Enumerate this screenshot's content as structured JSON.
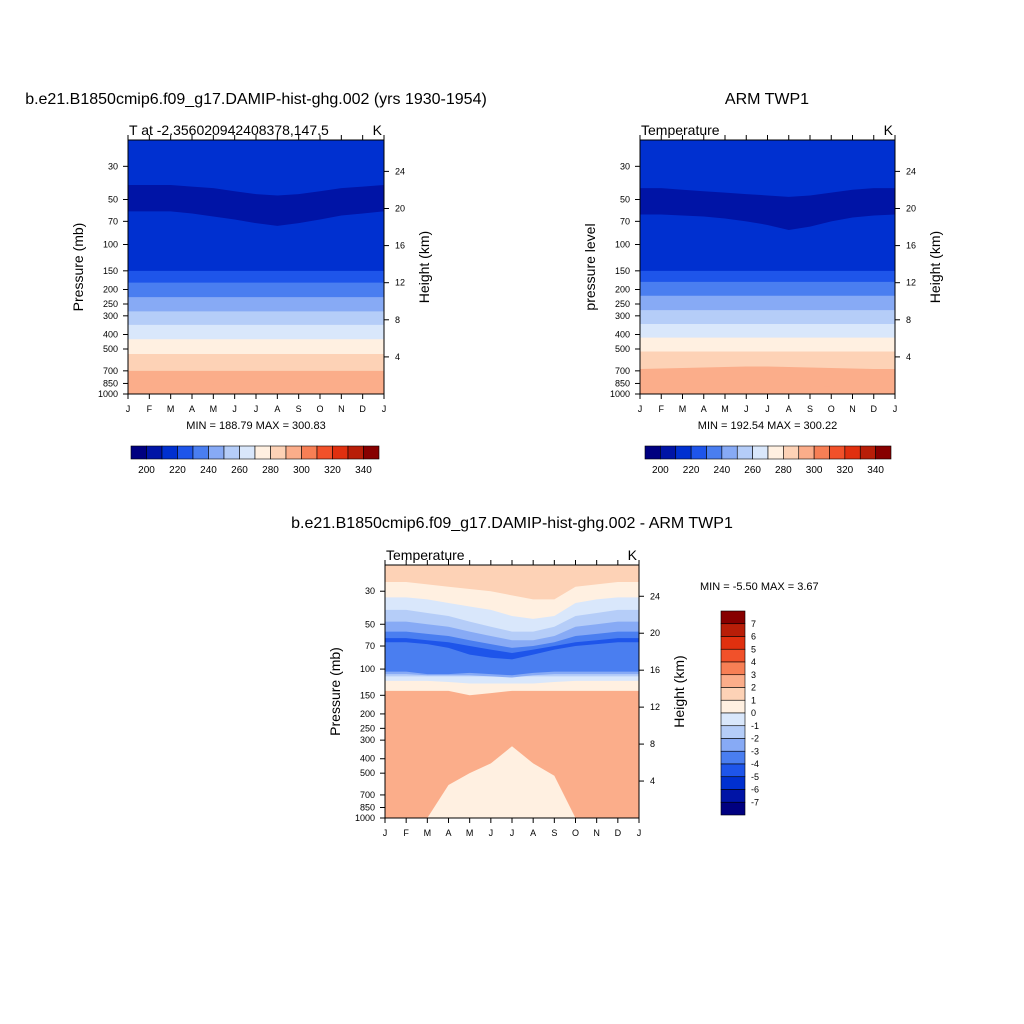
{
  "chart_data": [
    {
      "type": "heatmap",
      "title": "b.e21.B1850cmip6.f09_g17.DAMIP-hist-ghg.002 (yrs 1930-1954)",
      "subtitle_left": "T at -2.356020942408378,147.5",
      "units": "K",
      "ylabel": "Pressure (mb)",
      "ylabel_right": "Height (km)",
      "x": [
        "J",
        "F",
        "M",
        "A",
        "M",
        "J",
        "J",
        "A",
        "S",
        "O",
        "N",
        "D",
        "J"
      ],
      "yticks": [
        30,
        50,
        70,
        100,
        150,
        200,
        250,
        300,
        400,
        500,
        700,
        850,
        1000
      ],
      "yticks_right": [
        24,
        20,
        16,
        12,
        8,
        4
      ],
      "ylim": [
        1000,
        20
      ],
      "scale": "log",
      "stats": "MIN = 188.79 MAX = 300.83",
      "colorbar": {
        "orientation": "horizontal",
        "tick_labels": [
          "200",
          "220",
          "240",
          "260",
          "280",
          "300",
          "320",
          "340"
        ],
        "colors": [
          "#000080",
          "#0014a6",
          "#0030d0",
          "#1e55ea",
          "#4a7ef0",
          "#87aaf5",
          "#b5cdf8",
          "#d9e7fb",
          "#fff0e1",
          "#fdd2b6",
          "#fbad8a",
          "#f77f55",
          "#f1512a",
          "#e0300f",
          "#b81e08",
          "#870000"
        ]
      },
      "contours": [
        {
          "level": 290,
          "boundary_pressure": [
            880,
            880,
            875,
            870,
            865,
            860,
            860,
            865,
            870,
            875,
            880,
            880,
            880
          ]
        },
        {
          "level": 280,
          "boundary_pressure": [
            700,
            700,
            700,
            700,
            700,
            700,
            700,
            700,
            700,
            700,
            700,
            700,
            700
          ]
        },
        {
          "level": 270,
          "boundary_pressure": [
            540,
            540,
            540,
            540,
            540,
            540,
            540,
            540,
            540,
            540,
            540,
            540,
            540
          ]
        },
        {
          "level": 260,
          "boundary_pressure": [
            430,
            430,
            430,
            430,
            430,
            430,
            430,
            430,
            430,
            430,
            430,
            430,
            430
          ]
        },
        {
          "level": 250,
          "boundary_pressure": [
            345,
            345,
            345,
            345,
            345,
            345,
            345,
            345,
            345,
            345,
            345,
            345,
            345
          ]
        },
        {
          "level": 240,
          "boundary_pressure": [
            280,
            280,
            280,
            280,
            280,
            280,
            280,
            280,
            280,
            280,
            280,
            280,
            280
          ]
        },
        {
          "level": 230,
          "boundary_pressure": [
            225,
            225,
            225,
            225,
            225,
            225,
            225,
            225,
            225,
            225,
            225,
            225,
            225
          ]
        },
        {
          "level": 220,
          "boundary_pressure": [
            180,
            180,
            180,
            180,
            180,
            180,
            180,
            180,
            180,
            180,
            180,
            180,
            180
          ]
        },
        {
          "level": 210,
          "boundary_pressure": [
            150,
            150,
            150,
            150,
            150,
            150,
            150,
            150,
            150,
            150,
            150,
            150,
            150
          ]
        },
        {
          "level": 200,
          "boundary_pressure": [
            60,
            60,
            60,
            62,
            65,
            68,
            72,
            75,
            72,
            68,
            64,
            62,
            60
          ]
        },
        {
          "level": 210,
          "boundary_pressure": [
            40,
            40,
            40,
            41,
            42,
            44,
            46,
            47,
            46,
            44,
            42,
            41,
            40
          ]
        },
        {
          "level": 220,
          "boundary_pressure": [
            20,
            20,
            20,
            20,
            20,
            20,
            20,
            20,
            20,
            20,
            20,
            20,
            20
          ]
        }
      ]
    },
    {
      "type": "heatmap",
      "title": "ARM TWP1",
      "subtitle_left": "Temperature",
      "units": "K",
      "ylabel": "pressure level",
      "ylabel_right": "Height (km)",
      "x": [
        "J",
        "F",
        "M",
        "A",
        "M",
        "J",
        "J",
        "A",
        "S",
        "O",
        "N",
        "D",
        "J"
      ],
      "yticks": [
        30,
        50,
        70,
        100,
        150,
        200,
        250,
        300,
        400,
        500,
        700,
        850,
        1000
      ],
      "yticks_right": [
        24,
        20,
        16,
        12,
        8,
        4
      ],
      "ylim": [
        1000,
        20
      ],
      "scale": "log",
      "stats": "MIN = 192.54 MAX = 300.22",
      "colorbar": {
        "orientation": "horizontal",
        "tick_labels": [
          "200",
          "220",
          "240",
          "260",
          "280",
          "300",
          "320",
          "340"
        ],
        "colors": [
          "#000080",
          "#0014a6",
          "#0030d0",
          "#1e55ea",
          "#4a7ef0",
          "#87aaf5",
          "#b5cdf8",
          "#d9e7fb",
          "#fff0e1",
          "#fdd2b6",
          "#fbad8a",
          "#f77f55",
          "#f1512a",
          "#e0300f",
          "#b81e08",
          "#870000"
        ]
      },
      "contours": [
        {
          "level": 290,
          "boundary_pressure": [
            880,
            880,
            880,
            880,
            880,
            885,
            890,
            890,
            890,
            885,
            880,
            880,
            880
          ]
        },
        {
          "level": 280,
          "boundary_pressure": [
            680,
            675,
            670,
            665,
            660,
            655,
            655,
            660,
            665,
            670,
            675,
            680,
            680
          ]
        },
        {
          "level": 270,
          "boundary_pressure": [
            520,
            520,
            520,
            520,
            520,
            520,
            520,
            520,
            520,
            520,
            520,
            520,
            520
          ]
        },
        {
          "level": 260,
          "boundary_pressure": [
            420,
            420,
            420,
            420,
            420,
            420,
            420,
            420,
            420,
            420,
            420,
            420,
            420
          ]
        },
        {
          "level": 250,
          "boundary_pressure": [
            340,
            340,
            340,
            340,
            340,
            340,
            340,
            340,
            340,
            340,
            340,
            340,
            340
          ]
        },
        {
          "level": 240,
          "boundary_pressure": [
            275,
            275,
            275,
            275,
            275,
            275,
            275,
            275,
            275,
            275,
            275,
            275,
            275
          ]
        },
        {
          "level": 230,
          "boundary_pressure": [
            220,
            220,
            220,
            220,
            220,
            220,
            220,
            220,
            220,
            220,
            220,
            220,
            220
          ]
        },
        {
          "level": 220,
          "boundary_pressure": [
            178,
            178,
            178,
            178,
            178,
            178,
            178,
            178,
            178,
            178,
            178,
            178,
            178
          ]
        },
        {
          "level": 210,
          "boundary_pressure": [
            150,
            150,
            150,
            150,
            150,
            150,
            150,
            150,
            150,
            150,
            150,
            150,
            150
          ]
        },
        {
          "level": 200,
          "boundary_pressure": [
            63,
            63,
            64,
            65,
            67,
            70,
            74,
            80,
            76,
            70,
            66,
            64,
            63
          ]
        },
        {
          "level": 210,
          "boundary_pressure": [
            42,
            42,
            43,
            44,
            45,
            46,
            47,
            48,
            47,
            45,
            43,
            42,
            42
          ]
        },
        {
          "level": 220,
          "boundary_pressure": [
            20,
            20,
            20,
            20,
            20,
            20,
            20,
            20,
            20,
            20,
            20,
            20,
            20
          ]
        }
      ]
    },
    {
      "type": "heatmap",
      "title": "b.e21.B1850cmip6.f09_g17.DAMIP-hist-ghg.002 - ARM TWP1",
      "subtitle_left": "Temperature",
      "units": "K",
      "ylabel": "Pressure (mb)",
      "ylabel_right": "Height (km)",
      "x": [
        "J",
        "F",
        "M",
        "A",
        "M",
        "J",
        "J",
        "A",
        "S",
        "O",
        "N",
        "D",
        "J"
      ],
      "yticks": [
        30,
        50,
        70,
        100,
        150,
        200,
        250,
        300,
        400,
        500,
        700,
        850,
        1000
      ],
      "yticks_right": [
        24,
        20,
        16,
        12,
        8,
        4
      ],
      "ylim": [
        1000,
        20
      ],
      "scale": "log",
      "stats": "MIN =  -5.50 MAX =   3.67",
      "colorbar": {
        "orientation": "vertical",
        "tick_labels": [
          "7",
          "6",
          "5",
          "4",
          "3",
          "2",
          "1",
          "0",
          "-1",
          "-2",
          "-3",
          "-4",
          "-5",
          "-6",
          "-7"
        ],
        "colors": [
          "#870000",
          "#b81e08",
          "#e0300f",
          "#f1512a",
          "#f77f55",
          "#fbad8a",
          "#fdd2b6",
          "#fff0e1",
          "#d9e7fb",
          "#b5cdf8",
          "#87aaf5",
          "#4a7ef0",
          "#1e55ea",
          "#0030d0",
          "#0014a6",
          "#000080"
        ]
      },
      "contours": [
        {
          "level": 0.5,
          "boundary_pressure": [
            1000,
            1000,
            1000,
            1000,
            1000,
            1000,
            1000,
            1000,
            1000,
            1000,
            1000,
            1000,
            1000
          ]
        },
        {
          "level": -0.5,
          "boundary_pressure": [
            760,
            760,
            720,
            840,
            1000,
            1000,
            1000,
            1000,
            1000,
            1000,
            760,
            760,
            760
          ]
        },
        {
          "level": 0.5,
          "boundary_pressure": [
            1000,
            1000,
            1000,
            1000,
            1000,
            1000,
            1000,
            1000,
            1000,
            1000,
            1000,
            1000,
            1000
          ]
        },
        {
          "level": 1.5,
          "boundary_pressure": [
            540,
            540,
            560,
            600,
            240,
            210,
            200,
            210,
            230,
            430,
            540,
            540,
            540
          ]
        },
        {
          "level": 2.5,
          "boundary_pressure": [
            1000,
            1000,
            1000,
            600,
            500,
            430,
            330,
            430,
            520,
            1000,
            1000,
            1000,
            1000
          ]
        },
        {
          "level": 0.5,
          "boundary_pressure": [
            140,
            140,
            140,
            140,
            150,
            145,
            140,
            140,
            140,
            140,
            140,
            140,
            140
          ]
        },
        {
          "level": -0.5,
          "boundary_pressure": [
            120,
            120,
            120,
            122,
            125,
            125,
            125,
            125,
            122,
            120,
            120,
            120,
            120
          ]
        },
        {
          "level": -1.5,
          "boundary_pressure": [
            112,
            112,
            112,
            112,
            112,
            112,
            112,
            112,
            112,
            112,
            112,
            112,
            112
          ]
        },
        {
          "level": -2.5,
          "boundary_pressure": [
            108,
            108,
            110,
            110,
            110,
            112,
            114,
            110,
            108,
            108,
            108,
            108,
            108
          ]
        },
        {
          "level": -3.5,
          "boundary_pressure": [
            104,
            104,
            108,
            108,
            106,
            108,
            110,
            106,
            104,
            104,
            104,
            104,
            104
          ]
        },
        {
          "level": -4.5,
          "boundary_pressure": [
            66,
            66,
            68,
            72,
            80,
            84,
            86,
            80,
            74,
            70,
            68,
            66,
            66
          ]
        },
        {
          "level": -3.5,
          "boundary_pressure": [
            62,
            62,
            64,
            66,
            70,
            74,
            78,
            74,
            70,
            66,
            64,
            62,
            62
          ]
        },
        {
          "level": -2.5,
          "boundary_pressure": [
            56,
            56,
            58,
            60,
            64,
            68,
            72,
            70,
            66,
            60,
            58,
            56,
            56
          ]
        },
        {
          "level": -1.5,
          "boundary_pressure": [
            48,
            48,
            50,
            52,
            56,
            60,
            64,
            64,
            60,
            52,
            50,
            48,
            48
          ]
        },
        {
          "level": -0.5,
          "boundary_pressure": [
            40,
            40,
            42,
            44,
            48,
            52,
            56,
            56,
            52,
            44,
            42,
            40,
            40
          ]
        },
        {
          "level": 0.5,
          "boundary_pressure": [
            33,
            33,
            34,
            36,
            38,
            40,
            44,
            46,
            44,
            36,
            34,
            33,
            33
          ]
        },
        {
          "level": 1.5,
          "boundary_pressure": [
            26,
            26,
            27,
            28,
            29,
            30,
            32,
            34,
            34,
            28,
            27,
            26,
            26
          ]
        },
        {
          "level": 2.5,
          "boundary_pressure": [
            20,
            20,
            20,
            20,
            20,
            20,
            20,
            20,
            20,
            20,
            20,
            20,
            20
          ]
        }
      ]
    }
  ]
}
